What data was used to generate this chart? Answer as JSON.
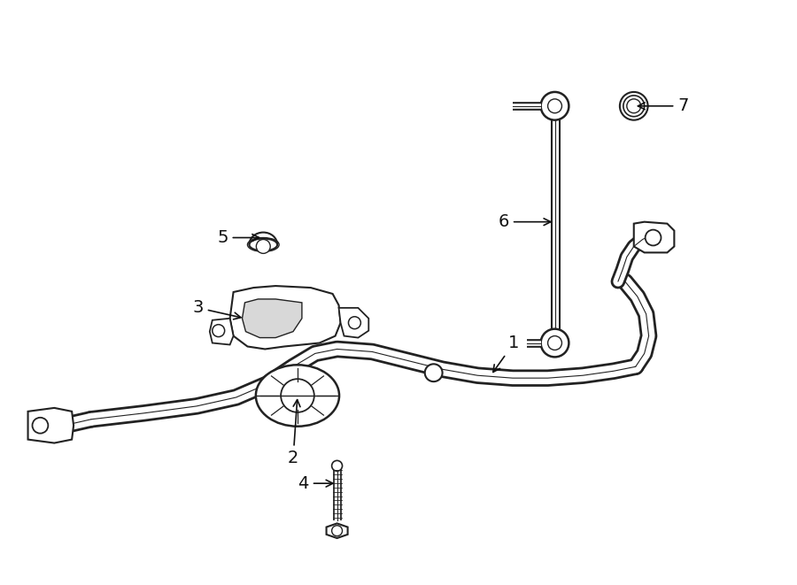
{
  "background_color": "#ffffff",
  "line_color": "#222222",
  "figsize": [
    9.0,
    6.61
  ],
  "dpi": 100,
  "label_fontsize": 14,
  "label_color": "#111111"
}
